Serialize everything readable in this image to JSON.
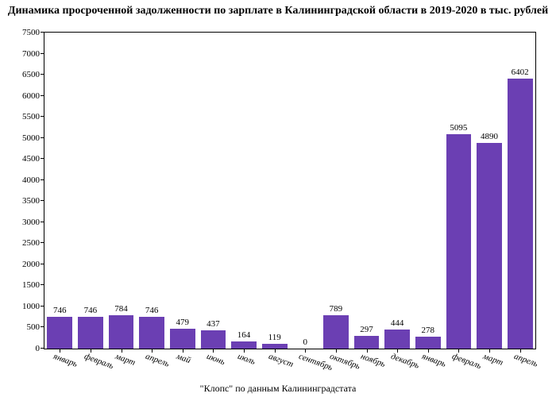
{
  "chart": {
    "type": "bar",
    "title": "Динамика просроченной задолженности по зарплате в Калининградской области в 2019-2020 в тыс. рублей",
    "source": "\"Клопс\" по данным Калининградстата",
    "categories": [
      "январь",
      "февраль",
      "март",
      "апрель",
      "май",
      "июнь",
      "июль",
      "август",
      "сентябрь",
      "октябрь",
      "ноябрь",
      "декабрь",
      "январь",
      "февраль",
      "март",
      "апрель"
    ],
    "values": [
      746,
      746,
      784,
      746,
      479,
      437,
      164,
      119,
      0,
      789,
      297,
      444,
      278,
      5095,
      4890,
      6402
    ],
    "bar_color": "#6b3fb3",
    "background_color": "#ffffff",
    "border_color": "#000000",
    "text_color": "#000000",
    "ylim": [
      0,
      7500
    ],
    "ytick_step": 500,
    "title_fontsize": 14,
    "label_fontsize": 11,
    "tick_fontsize": 11,
    "bar_width_ratio": 0.82,
    "xlabel_rotation_deg": 20,
    "xlabel_font_style": "italic"
  }
}
